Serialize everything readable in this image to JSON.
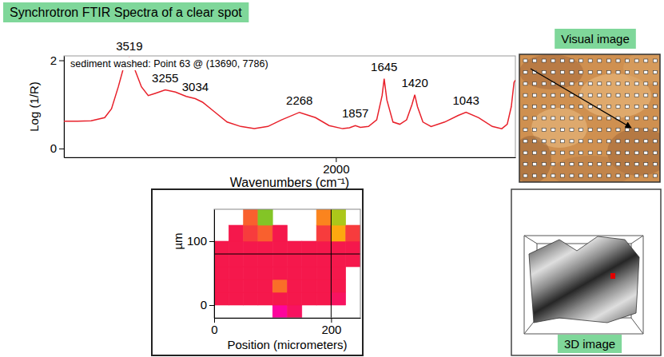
{
  "title": "Synchrotron FTIR Spectra of a clear spot",
  "chart_data": [
    {
      "type": "line",
      "x_label": "Wavenumbers (cm⁻¹)",
      "y_label": "Log (1/R)",
      "annotation": "sediment washed: Point 63 @ (13690, 7786)",
      "x": [
        4000,
        3900,
        3800,
        3700,
        3650,
        3600,
        3560,
        3519,
        3480,
        3430,
        3380,
        3330,
        3255,
        3180,
        3100,
        3034,
        2980,
        2900,
        2800,
        2700,
        2600,
        2500,
        2400,
        2268,
        2150,
        2050,
        1950,
        1900,
        1857,
        1820,
        1760,
        1700,
        1660,
        1645,
        1625,
        1580,
        1530,
        1480,
        1440,
        1420,
        1400,
        1360,
        1300,
        1200,
        1100,
        1043,
        950,
        850,
        780,
        740,
        710,
        690,
        680
      ],
      "series": [
        {
          "color": "#e8202a",
          "values": [
            0.62,
            0.62,
            0.63,
            0.7,
            0.9,
            1.4,
            1.85,
            2.05,
            1.8,
            1.4,
            1.2,
            1.25,
            1.33,
            1.28,
            1.18,
            1.13,
            1.05,
            0.85,
            0.6,
            0.5,
            0.45,
            0.5,
            0.65,
            0.82,
            0.7,
            0.52,
            0.45,
            0.47,
            0.52,
            0.48,
            0.5,
            0.65,
            1.2,
            1.58,
            1.1,
            0.6,
            0.55,
            0.65,
            1.0,
            1.22,
            0.95,
            0.6,
            0.5,
            0.6,
            0.75,
            0.82,
            0.7,
            0.5,
            0.45,
            0.55,
            0.95,
            1.5,
            1.55
          ]
        }
      ],
      "peaks": [
        3519,
        3255,
        3034,
        2268,
        1857,
        1645,
        1420,
        1043
      ],
      "xlim": [
        4000,
        680
      ],
      "xticks": [
        2000
      ],
      "ylim": [
        -0.2,
        2.1
      ],
      "yticks": [
        0,
        2
      ]
    },
    {
      "type": "heatmap",
      "x_label": "Position (micrometers)",
      "y_label": "µm",
      "x_edges": [
        0,
        25,
        50,
        75,
        100,
        125,
        150,
        175,
        200,
        225,
        250
      ],
      "y_edges": [
        -20,
        0,
        20,
        40,
        60,
        80,
        100,
        125,
        150
      ],
      "z": [
        [
          null,
          null,
          null,
          null,
          0.3,
          0.45,
          null,
          null,
          null,
          null
        ],
        [
          0.5,
          0.5,
          0.5,
          0.5,
          0.5,
          0.5,
          0.5,
          0.5,
          0.45,
          null
        ],
        [
          0.5,
          0.5,
          0.5,
          0.5,
          0.62,
          0.5,
          0.5,
          0.5,
          0.5,
          null
        ],
        [
          0.5,
          0.5,
          0.5,
          0.5,
          0.5,
          0.5,
          0.5,
          0.5,
          0.5,
          null
        ],
        [
          0.5,
          0.5,
          0.5,
          0.5,
          0.5,
          0.5,
          0.5,
          0.5,
          0.5,
          0.5
        ],
        [
          0.5,
          0.5,
          0.5,
          0.5,
          0.5,
          0.5,
          0.5,
          0.5,
          0.5,
          0.5
        ],
        [
          null,
          0.5,
          0.55,
          0.6,
          0.5,
          null,
          null,
          0.55,
          0.7,
          0.55
        ],
        [
          null,
          null,
          0.6,
          0.9,
          null,
          null,
          null,
          0.65,
          0.85,
          null
        ]
      ],
      "zlim": [
        0,
        1
      ],
      "crosshair": [
        200,
        80
      ],
      "xlim": [
        0,
        250
      ],
      "xticks": [
        0,
        200
      ],
      "ylim": [
        -20,
        150
      ],
      "yticks": [
        0,
        100
      ]
    }
  ],
  "panels": {
    "visual_image": {
      "label": "Visual image"
    },
    "image_3d": {
      "label": "3D image"
    }
  }
}
